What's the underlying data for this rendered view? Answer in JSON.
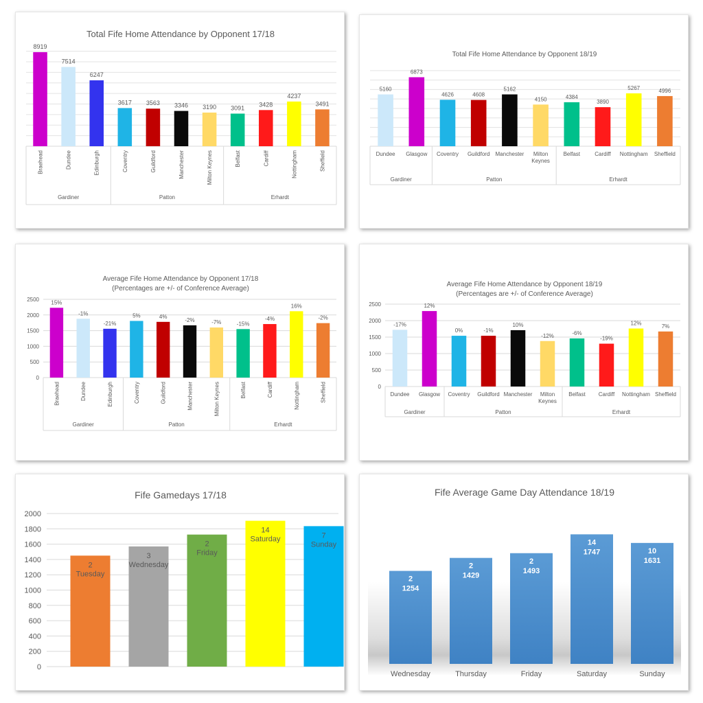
{
  "chart_data": [
    {
      "id": "p1",
      "type": "bar",
      "title": "Total Fife Home Attendance by Opponent 17/18",
      "subtitle": "",
      "categories": [
        "Braehead",
        "Dundee",
        "Edinburgh",
        "Coventry",
        "Guildford",
        "Manchester",
        "Milton Keynes",
        "Belfast",
        "Cardiff",
        "Nottingham",
        "Sheffield"
      ],
      "values": [
        8919,
        7514,
        6247,
        3617,
        3563,
        3346,
        3190,
        3091,
        3428,
        4237,
        3491
      ],
      "labels": [
        "8919",
        "7514",
        "6247",
        "3617",
        "3563",
        "3346",
        "3190",
        "3091",
        "3428",
        "4237",
        "3491"
      ],
      "colors": [
        "#cc00cc",
        "#cce8fa",
        "#3333ee",
        "#1fb4e6",
        "#c00000",
        "#0a0a0a",
        "#ffd966",
        "#00c08b",
        "#ff1a1a",
        "#ffff00",
        "#ed7d31"
      ],
      "groups": [
        {
          "name": "Gardiner",
          "count": 3
        },
        {
          "name": "Patton",
          "count": 4
        },
        {
          "name": "Erhardt",
          "count": 4
        }
      ],
      "ylim": [
        0,
        9500
      ],
      "gridlines": 9,
      "yticks": [],
      "rotate_categories": true,
      "grid": true
    },
    {
      "id": "p2",
      "type": "bar",
      "title": "Total Fife Home Attendance by Opponent 18/19",
      "subtitle": "",
      "categories": [
        "Dundee",
        "Glasgow",
        "Coventry",
        "Guildford",
        "Manchester",
        "Milton Keynes",
        "Belfast",
        "Cardiff",
        "Nottingham",
        "Sheffield"
      ],
      "values": [
        5160,
        6873,
        4626,
        4608,
        5162,
        4150,
        4384,
        3890,
        5267,
        4996
      ],
      "labels": [
        "5160",
        "6873",
        "4626",
        "4608",
        "5162",
        "4150",
        "4384",
        "3890",
        "5267",
        "4996"
      ],
      "colors": [
        "#cce8fa",
        "#cc00cc",
        "#1fb4e6",
        "#c00000",
        "#0a0a0a",
        "#ffd966",
        "#00c08b",
        "#ff1a1a",
        "#ffff00",
        "#ed7d31"
      ],
      "groups": [
        {
          "name": "Gardiner",
          "count": 2
        },
        {
          "name": "Patton",
          "count": 4
        },
        {
          "name": "Erhardt",
          "count": 4
        }
      ],
      "ylim": [
        0,
        8000
      ],
      "gridlines": 8,
      "yticks": [],
      "rotate_categories": false,
      "grid": true
    },
    {
      "id": "p3",
      "type": "bar",
      "title": "Average Fife Home Attendance by Opponent 17/18",
      "subtitle": "(Percentages are +/- of Conference Average)",
      "categories": [
        "Braehead",
        "Dundee",
        "Edinburgh",
        "Coventry",
        "Guildford",
        "Manchester",
        "Milton Keynes",
        "Belfast",
        "Cardiff",
        "Nottingham",
        "Sheffield"
      ],
      "values": [
        2230,
        1880,
        1560,
        1810,
        1780,
        1670,
        1600,
        1550,
        1710,
        2120,
        1740
      ],
      "labels": [
        "15%",
        "-1%",
        "-21%",
        "5%",
        "4%",
        "-2%",
        "-7%",
        "-15%",
        "-4%",
        "16%",
        "-2%"
      ],
      "colors": [
        "#cc00cc",
        "#cce8fa",
        "#3333ee",
        "#1fb4e6",
        "#c00000",
        "#0a0a0a",
        "#ffd966",
        "#00c08b",
        "#ff1a1a",
        "#ffff00",
        "#ed7d31"
      ],
      "groups": [
        {
          "name": "Gardiner",
          "count": 3
        },
        {
          "name": "Patton",
          "count": 4
        },
        {
          "name": "Erhardt",
          "count": 4
        }
      ],
      "ylim": [
        0,
        2500
      ],
      "yticks": [
        "0",
        "500",
        "1000",
        "1500",
        "2000",
        "2500"
      ],
      "rotate_categories": true,
      "grid": true
    },
    {
      "id": "p4",
      "type": "bar",
      "title": "Average Fife Home Attendance by Opponent 18/19",
      "subtitle": "(Percentages are +/- of Conference Average)",
      "categories": [
        "Dundee",
        "Glasgow",
        "Coventry",
        "Guildford",
        "Manchester",
        "Milton Keynes",
        "Belfast",
        "Cardiff",
        "Nottingham",
        "Sheffield"
      ],
      "values": [
        1720,
        2290,
        1540,
        1540,
        1710,
        1380,
        1460,
        1300,
        1760,
        1670
      ],
      "labels": [
        "-17%",
        "12%",
        "0%",
        "-1%",
        "10%",
        "-12%",
        "-6%",
        "-19%",
        "12%",
        "7%"
      ],
      "colors": [
        "#cce8fa",
        "#cc00cc",
        "#1fb4e6",
        "#c00000",
        "#0a0a0a",
        "#ffd966",
        "#00c08b",
        "#ff1a1a",
        "#ffff00",
        "#ed7d31"
      ],
      "groups": [
        {
          "name": "Gardiner",
          "count": 2
        },
        {
          "name": "Patton",
          "count": 4
        },
        {
          "name": "Erhardt",
          "count": 4
        }
      ],
      "ylim": [
        0,
        2500
      ],
      "yticks": [
        "0",
        "500",
        "1000",
        "1500",
        "2000",
        "2500"
      ],
      "rotate_categories": false,
      "grid": true
    },
    {
      "id": "p5",
      "type": "bar",
      "title": "Fife Gamedays 17/18",
      "categories": [
        "Tuesday",
        "Wednesday",
        "Friday",
        "Saturday",
        "Sunday"
      ],
      "games": [
        "2",
        "3",
        "2",
        "14",
        "7"
      ],
      "values": [
        1450,
        1570,
        1725,
        1905,
        1835
      ],
      "colors": [
        "#ed7d31",
        "#a5a5a5",
        "#70ad47",
        "#ffff00",
        "#00b0f0"
      ],
      "ylim": [
        0,
        2000
      ],
      "yticks": [
        "0",
        "200",
        "400",
        "600",
        "800",
        "1000",
        "1200",
        "1400",
        "1600",
        "1800",
        "2000"
      ],
      "grid": true
    },
    {
      "id": "p6",
      "type": "bar",
      "title": "Fife Average Game Day Attendance 18/19",
      "categories": [
        "Wednesday",
        "Thursday",
        "Friday",
        "Saturday",
        "Sunday"
      ],
      "games": [
        "2",
        "2",
        "2",
        "14",
        "10"
      ],
      "values": [
        1254,
        1429,
        1493,
        1747,
        1631
      ],
      "labels": [
        "1254",
        "1429",
        "1493",
        "1747",
        "1631"
      ],
      "ylim": [
        0,
        2000
      ],
      "grid": false
    }
  ]
}
